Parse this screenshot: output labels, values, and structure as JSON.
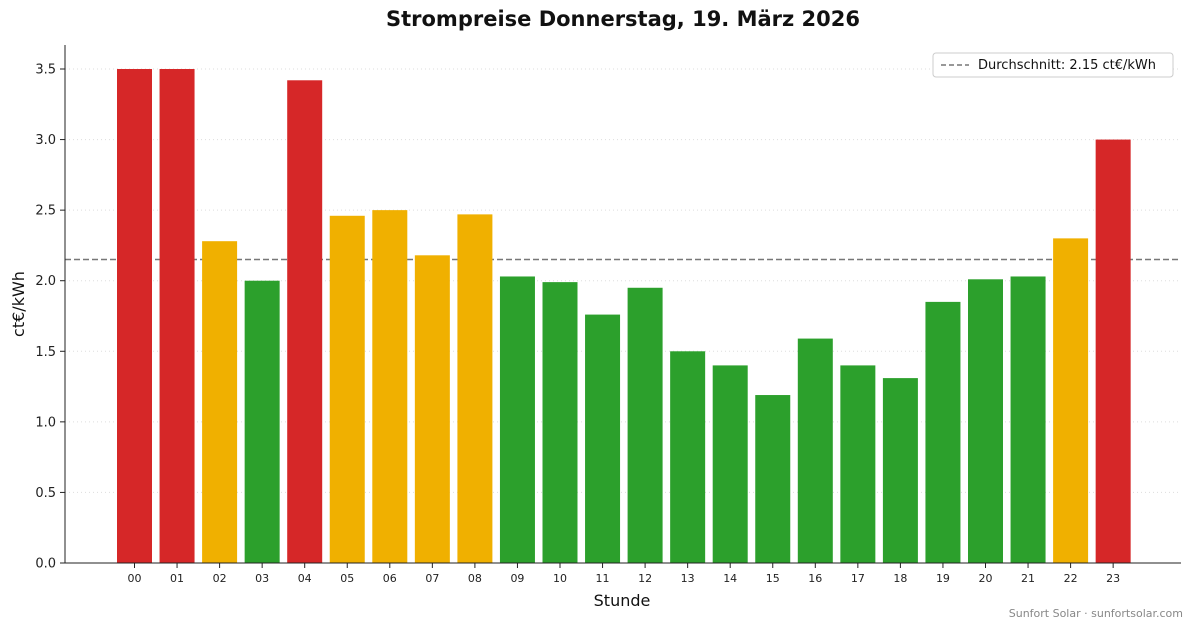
{
  "footer": "Sunfort Solar · sunfortsolar.com",
  "colors": {
    "high": "#d62728",
    "mid": "#f0b000",
    "low": "#2ca02c",
    "average_line": "#777777",
    "grid": "#dddddd"
  },
  "chart_data": {
    "type": "bar",
    "title": "Strompreise Donnerstag, 19. März 2026",
    "xlabel": "Stunde",
    "ylabel": "ct€/kWh",
    "ylim": [
      0,
      3.67
    ],
    "yticks": [
      0.0,
      0.5,
      1.0,
      1.5,
      2.0,
      2.5,
      3.0,
      3.5
    ],
    "grid": "horizontal dotted",
    "legend_position": "top-right",
    "categories": [
      "00",
      "01",
      "02",
      "03",
      "04",
      "05",
      "06",
      "07",
      "08",
      "09",
      "10",
      "11",
      "12",
      "13",
      "14",
      "15",
      "16",
      "17",
      "18",
      "19",
      "20",
      "21",
      "22",
      "23"
    ],
    "values": [
      3.5,
      3.5,
      2.28,
      2.0,
      3.42,
      2.46,
      2.5,
      2.18,
      2.47,
      2.03,
      1.99,
      1.76,
      1.95,
      1.5,
      1.4,
      1.19,
      1.59,
      1.4,
      1.31,
      1.85,
      2.01,
      2.03,
      2.3,
      3.0
    ],
    "bar_colors": [
      "high",
      "high",
      "mid",
      "low",
      "high",
      "mid",
      "mid",
      "mid",
      "mid",
      "low",
      "low",
      "low",
      "low",
      "low",
      "low",
      "low",
      "low",
      "low",
      "low",
      "low",
      "low",
      "low",
      "mid",
      "high"
    ],
    "average": {
      "value": 2.15,
      "label": "Durchschnitt: 2.15 ct€/kWh"
    }
  }
}
